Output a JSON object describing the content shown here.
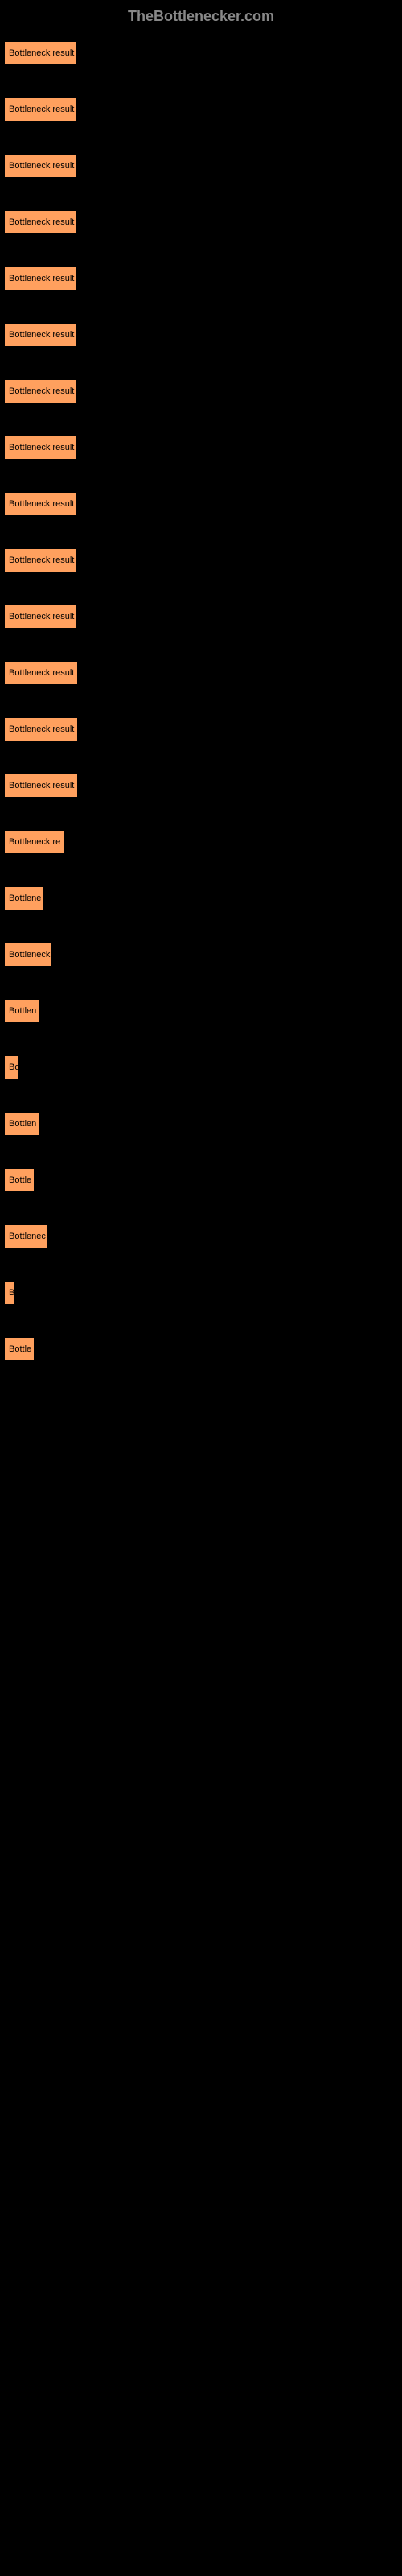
{
  "header": {
    "text": "TheBottlenecker.com"
  },
  "chart": {
    "type": "bar",
    "background_color": "#000000",
    "bar_color": "#ffa05e",
    "text_color": "#000000",
    "header_color": "#888888",
    "label_fontsize": 11,
    "bars": [
      {
        "label": "Bottleneck result",
        "width": 90
      },
      {
        "label": "Bottleneck result",
        "width": 90
      },
      {
        "label": "Bottleneck result",
        "width": 90
      },
      {
        "label": "Bottleneck result",
        "width": 90
      },
      {
        "label": "Bottleneck result",
        "width": 90
      },
      {
        "label": "Bottleneck result",
        "width": 90
      },
      {
        "label": "Bottleneck result",
        "width": 90
      },
      {
        "label": "Bottleneck result",
        "width": 90
      },
      {
        "label": "Bottleneck result",
        "width": 90
      },
      {
        "label": "Bottleneck result",
        "width": 90
      },
      {
        "label": "Bottleneck result",
        "width": 90
      },
      {
        "label": "Bottleneck result",
        "width": 92
      },
      {
        "label": "Bottleneck result",
        "width": 92
      },
      {
        "label": "Bottleneck result",
        "width": 92
      },
      {
        "label": "Bottleneck re",
        "width": 75
      },
      {
        "label": "Bottlene",
        "width": 50
      },
      {
        "label": "Bottleneck",
        "width": 60
      },
      {
        "label": "Bottlen",
        "width": 45
      },
      {
        "label": "Bo",
        "width": 18
      },
      {
        "label": "Bottlen",
        "width": 45
      },
      {
        "label": "Bottle",
        "width": 38
      },
      {
        "label": "Bottlenec",
        "width": 55
      },
      {
        "label": "B",
        "width": 14
      },
      {
        "label": "Bottle",
        "width": 38
      }
    ]
  }
}
